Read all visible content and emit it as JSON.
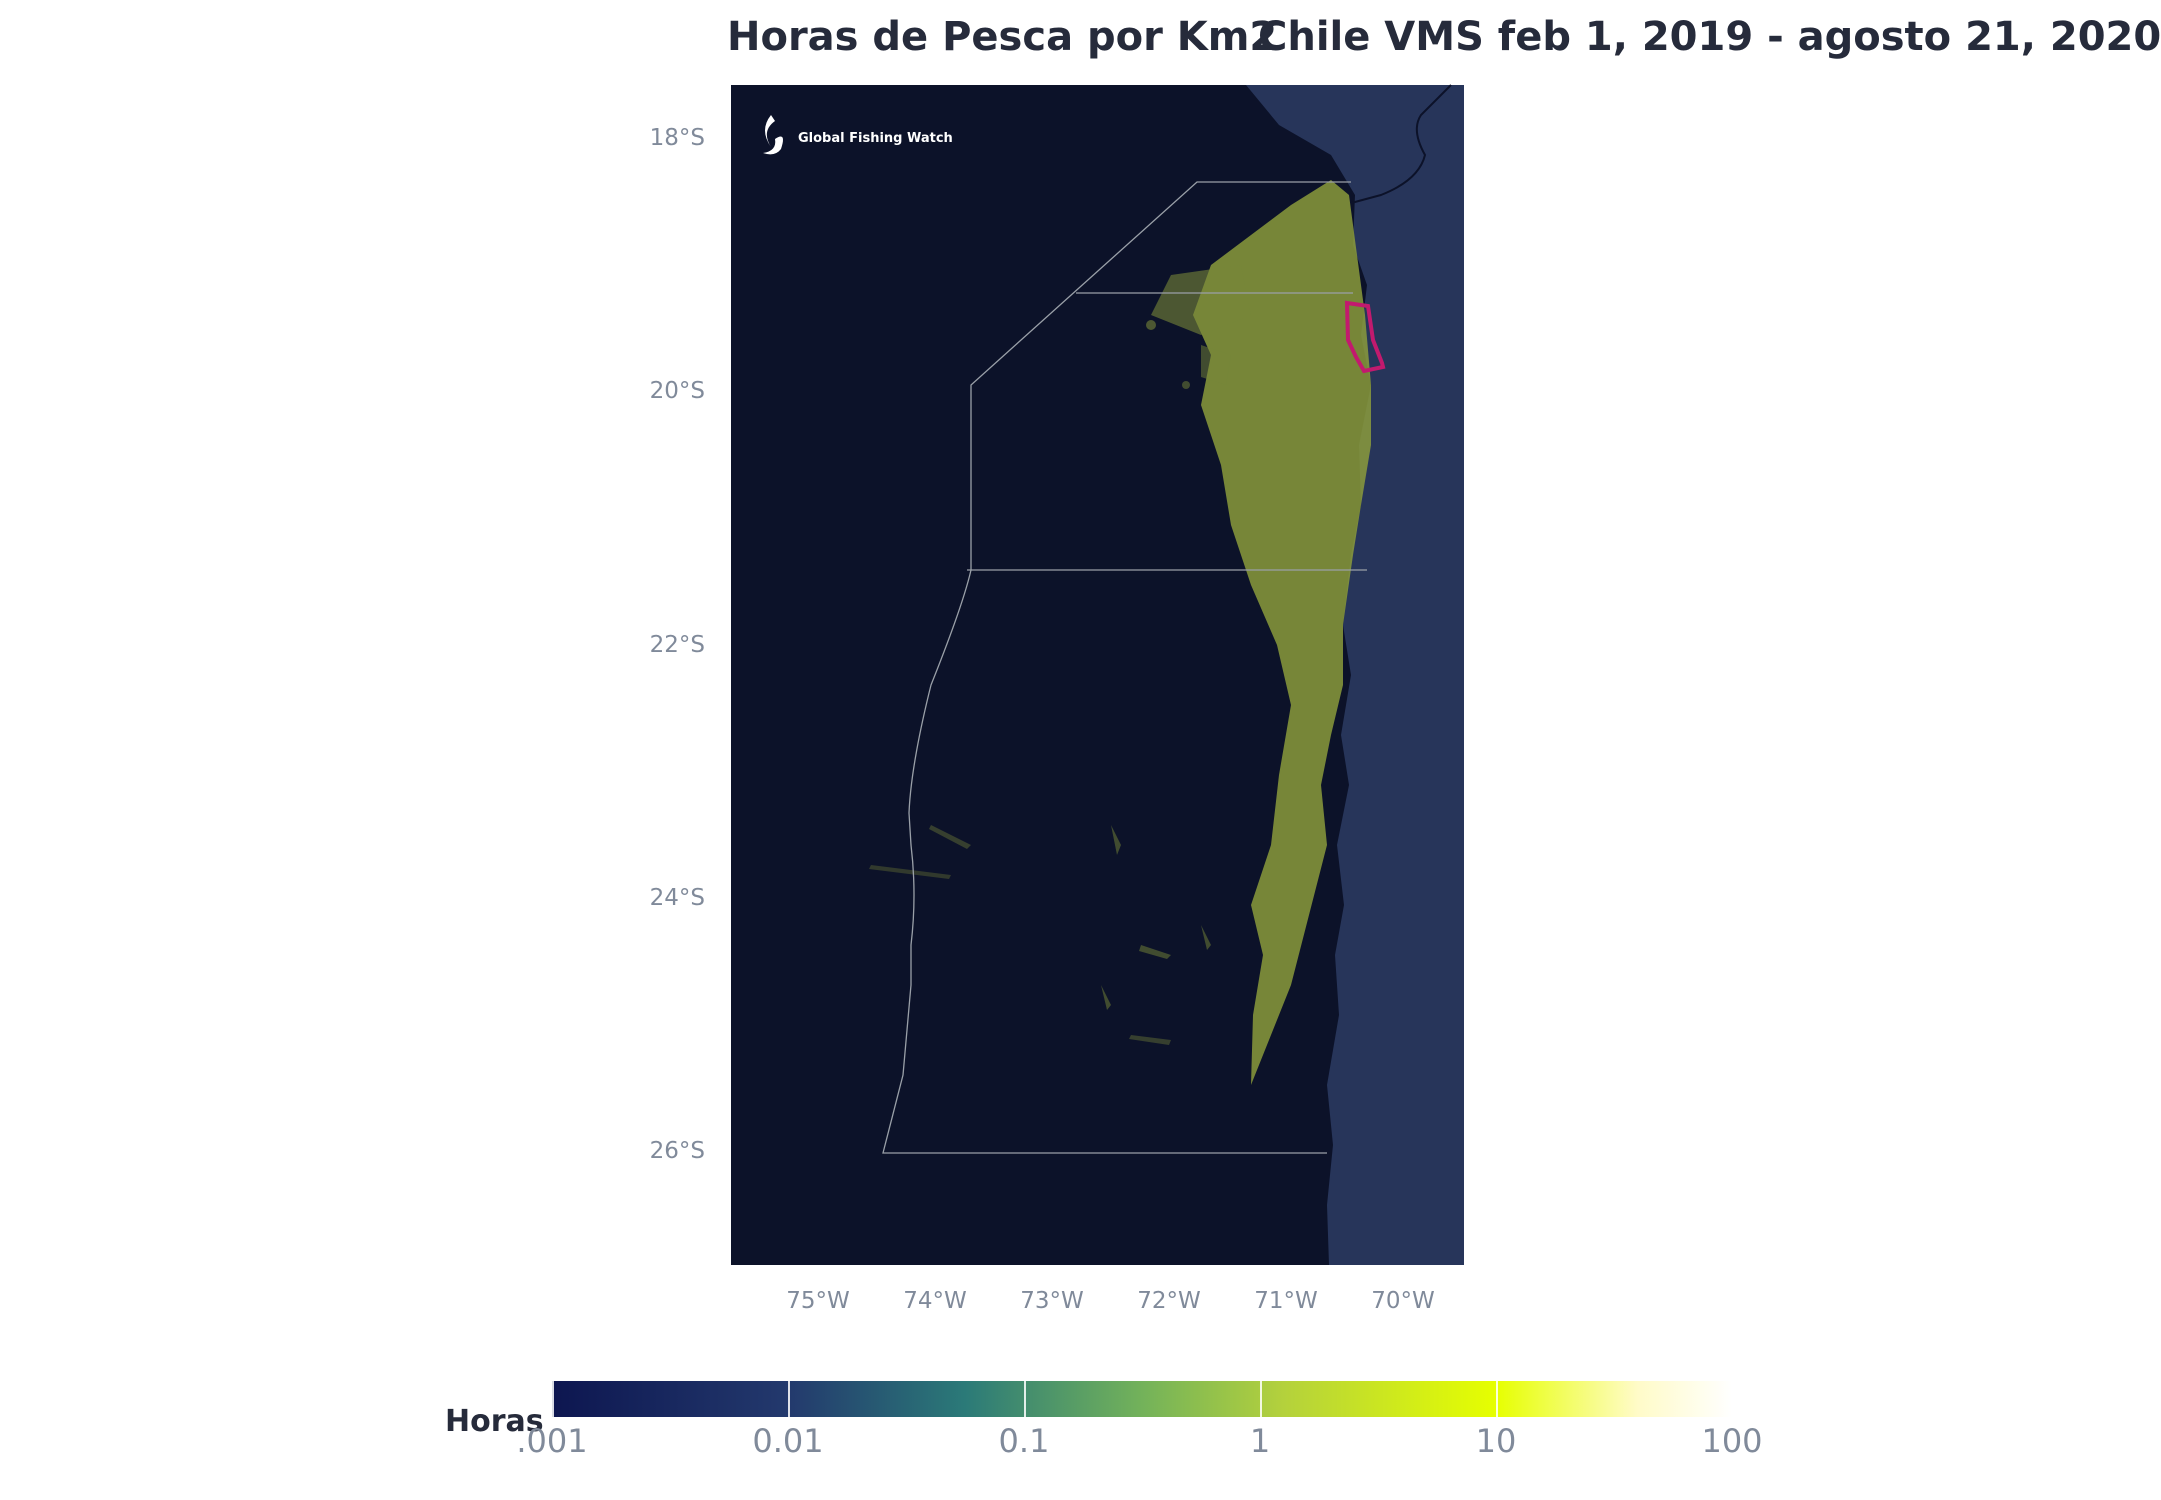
{
  "title": "Horas de Pesca por Km2",
  "subtitle": "Chile VMS feb 1, 2019 - agosto 21, 2020",
  "logo_text": "Global Fishing Watch",
  "lat_labels": [
    "18°S",
    "20°S",
    "22°S",
    "24°S",
    "26°S"
  ],
  "lon_labels": [
    "75°W",
    "74°W",
    "73°W",
    "72°W",
    "71°W",
    "70°W"
  ],
  "legend": {
    "title": "Horas",
    "ticks": [
      ".001",
      "0.01",
      "0.1",
      "1",
      "10",
      "100"
    ]
  },
  "colors": {
    "ocean": "#0c1229",
    "land": "#27355a",
    "fishing": "#8c9c3c",
    "boundary": "#9aa0a8",
    "highlight": "#c21a6e"
  }
}
